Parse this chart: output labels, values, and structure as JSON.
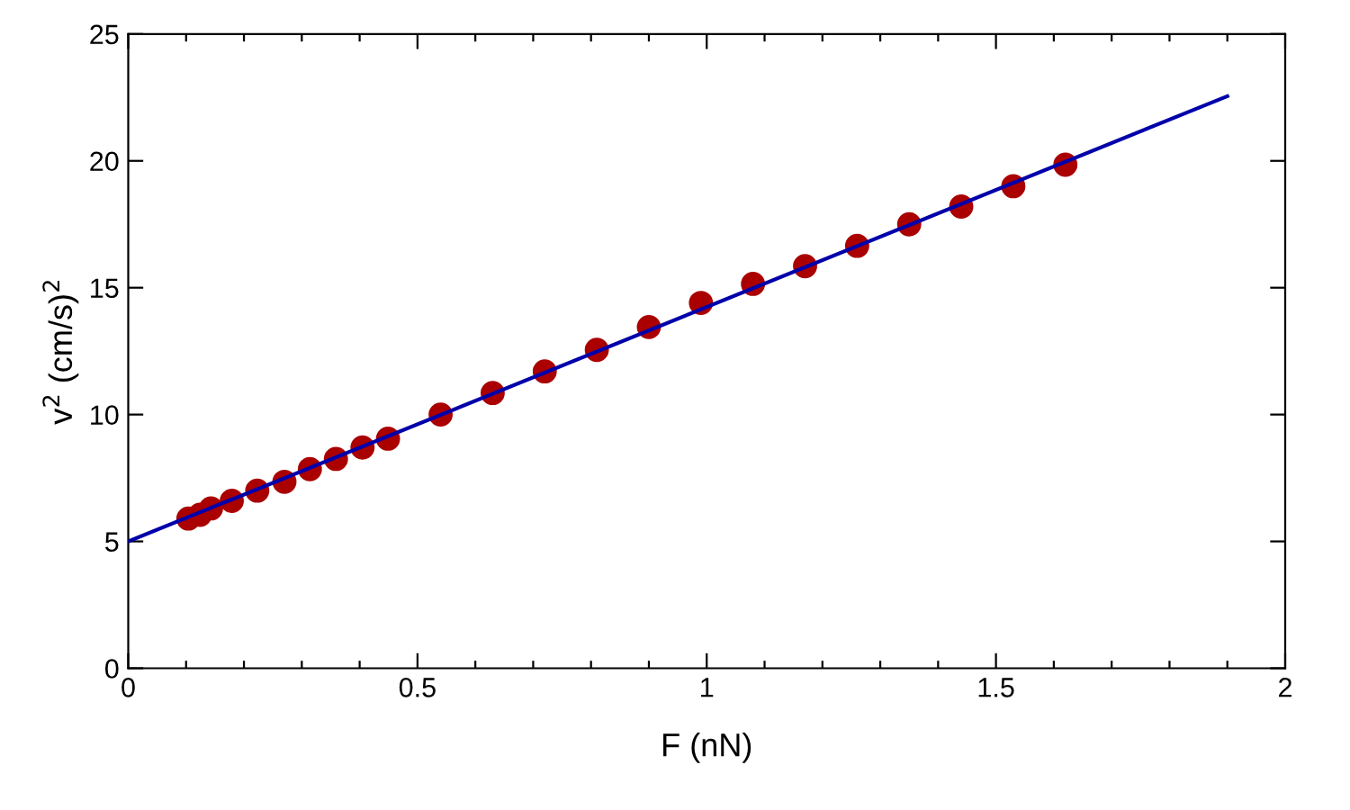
{
  "chart_data": {
    "type": "scatter",
    "xlabel": "F (nN)",
    "ylabel": "v$^{2}$ (cm/s)$^{2}$",
    "xlim": [
      0,
      2
    ],
    "ylim": [
      0,
      25
    ],
    "xticks": [
      0,
      {
        "value": 0.1,
        "label": null
      },
      {
        "value": 0.2,
        "label": null
      },
      {
        "value": 0.3,
        "label": null
      },
      {
        "value": 0.4,
        "label": null
      },
      0.5,
      {
        "value": 0.6,
        "label": null
      },
      {
        "value": 0.7,
        "label": null
      },
      {
        "value": 0.8,
        "label": null
      },
      {
        "value": 0.9,
        "label": null
      },
      1,
      {
        "value": 1.1,
        "label": null
      },
      {
        "value": 1.2,
        "label": null
      },
      {
        "value": 1.3,
        "label": null
      },
      {
        "value": 1.4,
        "label": null
      },
      1.5,
      {
        "value": 1.6,
        "label": null
      },
      {
        "value": 1.7,
        "label": null
      },
      {
        "value": 1.8,
        "label": null
      },
      {
        "value": 1.9,
        "label": null
      },
      2
    ],
    "yticks": [
      0,
      5,
      10,
      15,
      20,
      25
    ],
    "grid": false,
    "series": [
      {
        "marker": "circle",
        "color": "#aa0000",
        "x": [
          0.104,
          0.124,
          0.143,
          0.179,
          0.223,
          0.27,
          0.314,
          0.359,
          0.405,
          0.449,
          0.54,
          0.63,
          0.72,
          0.81,
          0.9,
          0.99,
          1.08,
          1.17,
          1.26,
          1.35,
          1.44,
          1.53,
          1.62
        ],
        "values": [
          5.9,
          6.05,
          6.3,
          6.6,
          7.0,
          7.35,
          7.85,
          8.25,
          8.7,
          9.05,
          10.0,
          10.85,
          11.7,
          12.55,
          13.45,
          14.4,
          15.15,
          15.85,
          16.65,
          17.5,
          18.2,
          19.0,
          19.85
        ]
      },
      {
        "type": "line",
        "color": "#0000aa",
        "x": [
          0,
          1.9
        ],
        "values": [
          5.0,
          22.55
        ]
      }
    ]
  }
}
